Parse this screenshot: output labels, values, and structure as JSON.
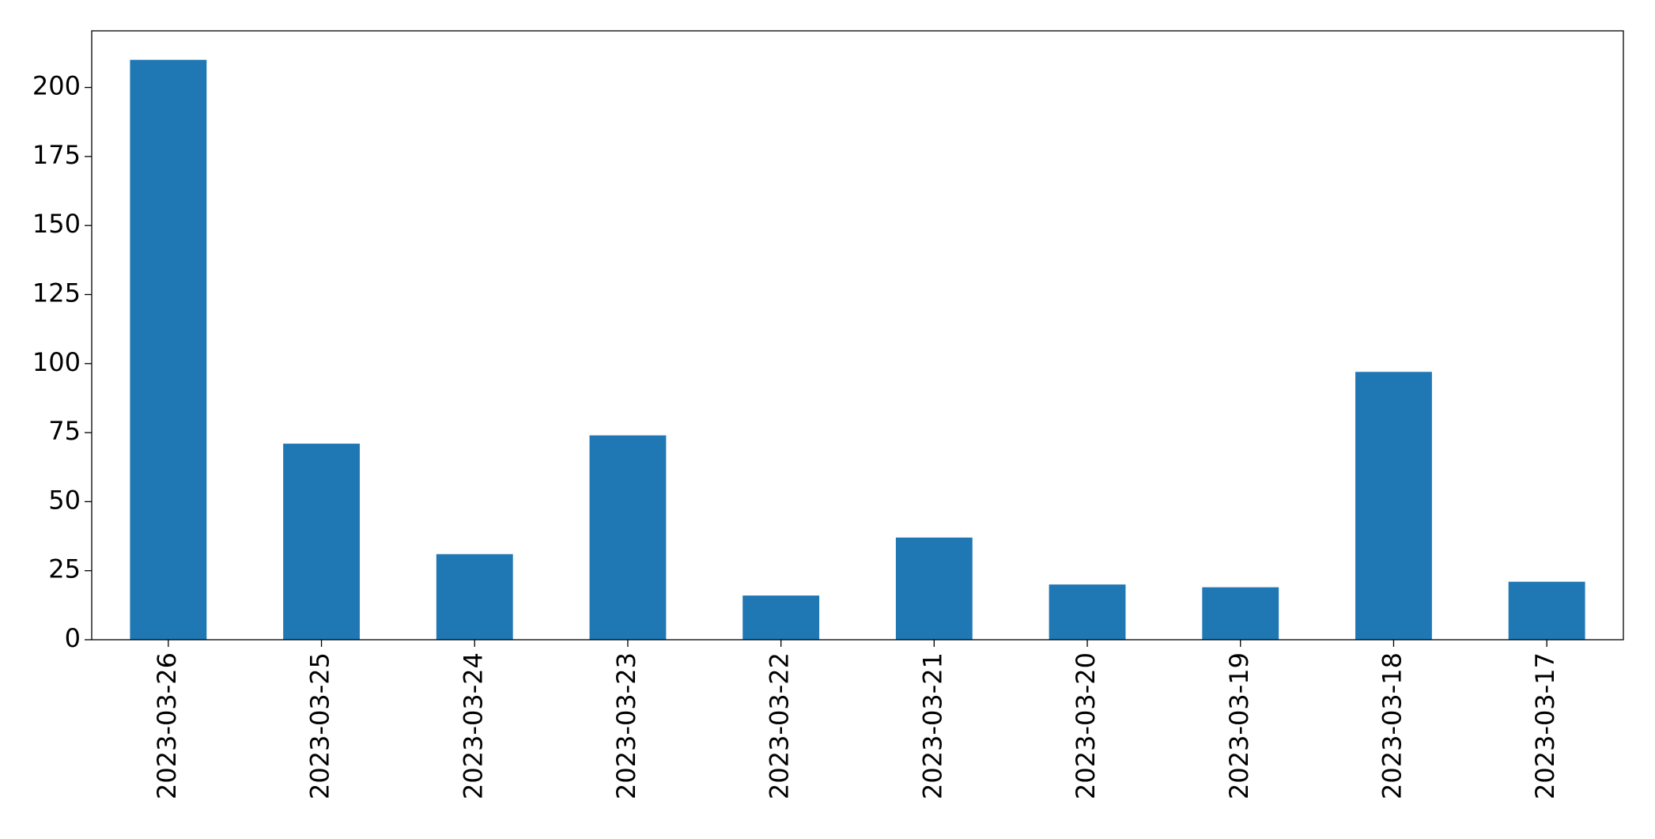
{
  "chart_data": {
    "type": "bar",
    "categories": [
      "2023-03-26",
      "2023-03-25",
      "2023-03-24",
      "2023-03-23",
      "2023-03-22",
      "2023-03-21",
      "2023-03-20",
      "2023-03-19",
      "2023-03-18",
      "2023-03-17"
    ],
    "values": [
      210,
      71,
      31,
      74,
      16,
      37,
      20,
      19,
      97,
      21
    ],
    "color": "#1f77b4",
    "ylim": [
      0,
      220.5
    ],
    "yticks": [
      0,
      25,
      50,
      75,
      100,
      125,
      150,
      175,
      200
    ],
    "grid": false
  }
}
